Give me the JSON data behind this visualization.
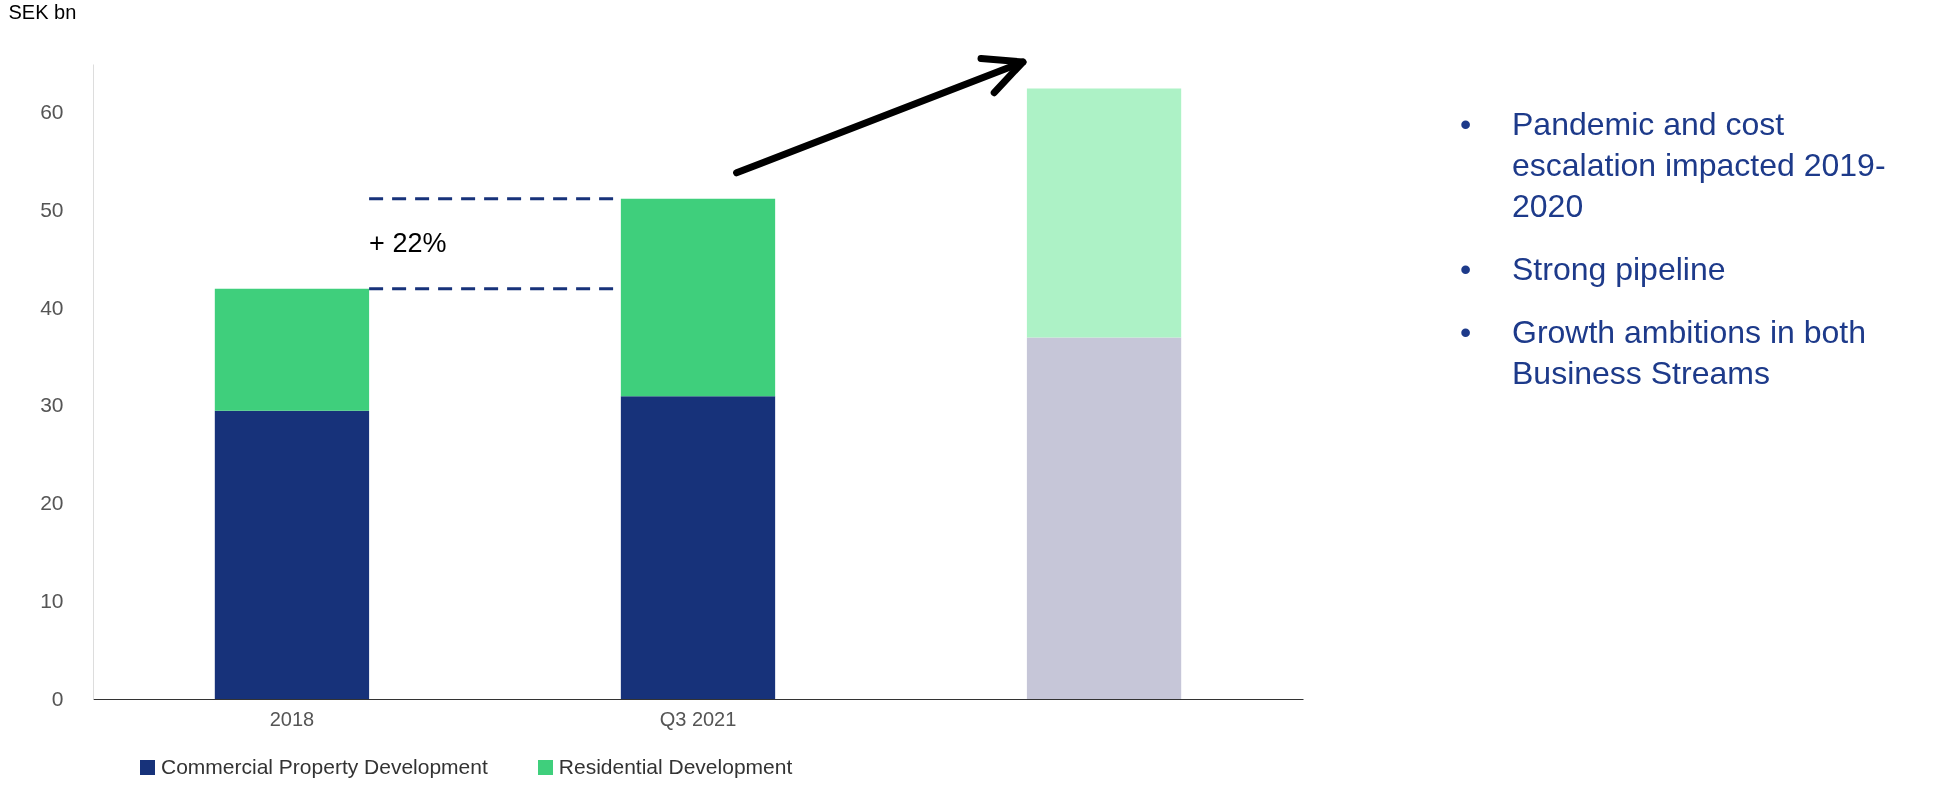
{
  "chart_data": {
    "type": "bar",
    "stacked": true,
    "ylabel": "SEK bn",
    "categories": [
      "2018",
      "Q3 2021",
      null
    ],
    "series": [
      {
        "name": "Commercial Property Development",
        "color": "#17327a",
        "colors": [
          "#17327a",
          "#17327a",
          "#c6c6d8"
        ],
        "values": [
          29.5,
          31,
          37
        ]
      },
      {
        "name": "Residential Development",
        "color": "#3fcf7c",
        "colors": [
          "#3fcf7c",
          "#3fcf7c",
          "#adf2c6"
        ],
        "values": [
          12.5,
          20.2,
          25.5
        ]
      }
    ],
    "ylim": [
      0,
      65
    ],
    "yticks": [
      0,
      10,
      20,
      30,
      40,
      50,
      60
    ],
    "grid": false,
    "legend": "bottom",
    "ref_lines": [
      {
        "axis": "y",
        "value": 42,
        "line_style": "dashed",
        "color": "#17327a"
      },
      {
        "axis": "y",
        "value": 51.2,
        "line_style": "dashed",
        "color": "#17327a"
      }
    ],
    "annotations": [
      "+ 22%",
      "• Pandemic and cost escalation impacted 2019-2020",
      "• Strong pipeline",
      "• Growth ambitions in both Business Streams"
    ]
  }
}
